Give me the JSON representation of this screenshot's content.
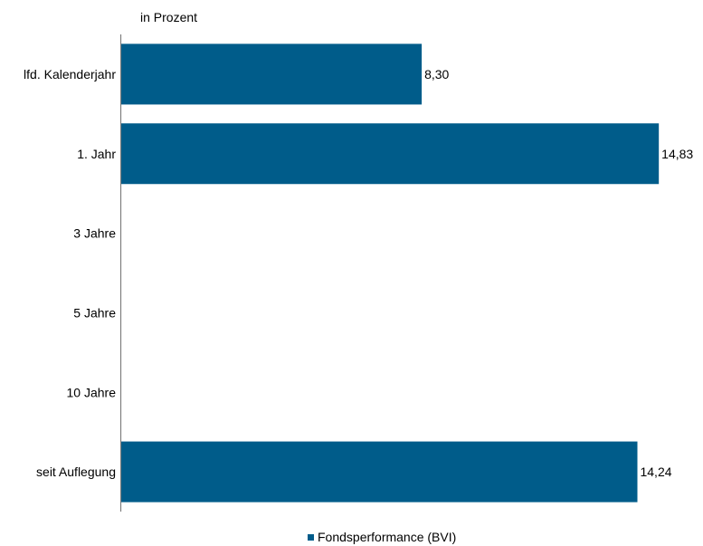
{
  "chart_data": {
    "type": "bar",
    "orientation": "horizontal",
    "unit_label": "in Prozent",
    "categories": [
      "lfd. Kalenderjahr",
      "1. Jahr",
      "3 Jahre",
      "5 Jahre",
      "10 Jahre",
      "seit Auflegung"
    ],
    "series": [
      {
        "name": "Fondsperformance (BVI)",
        "color": "#005c8a",
        "values": [
          8.3,
          14.83,
          null,
          null,
          null,
          14.24
        ],
        "labels": [
          "8,30",
          "14,83",
          "",
          "",
          "",
          "14,24"
        ]
      }
    ],
    "xlim": [
      0,
      15
    ],
    "grid": false,
    "legend_position": "bottom-center"
  }
}
